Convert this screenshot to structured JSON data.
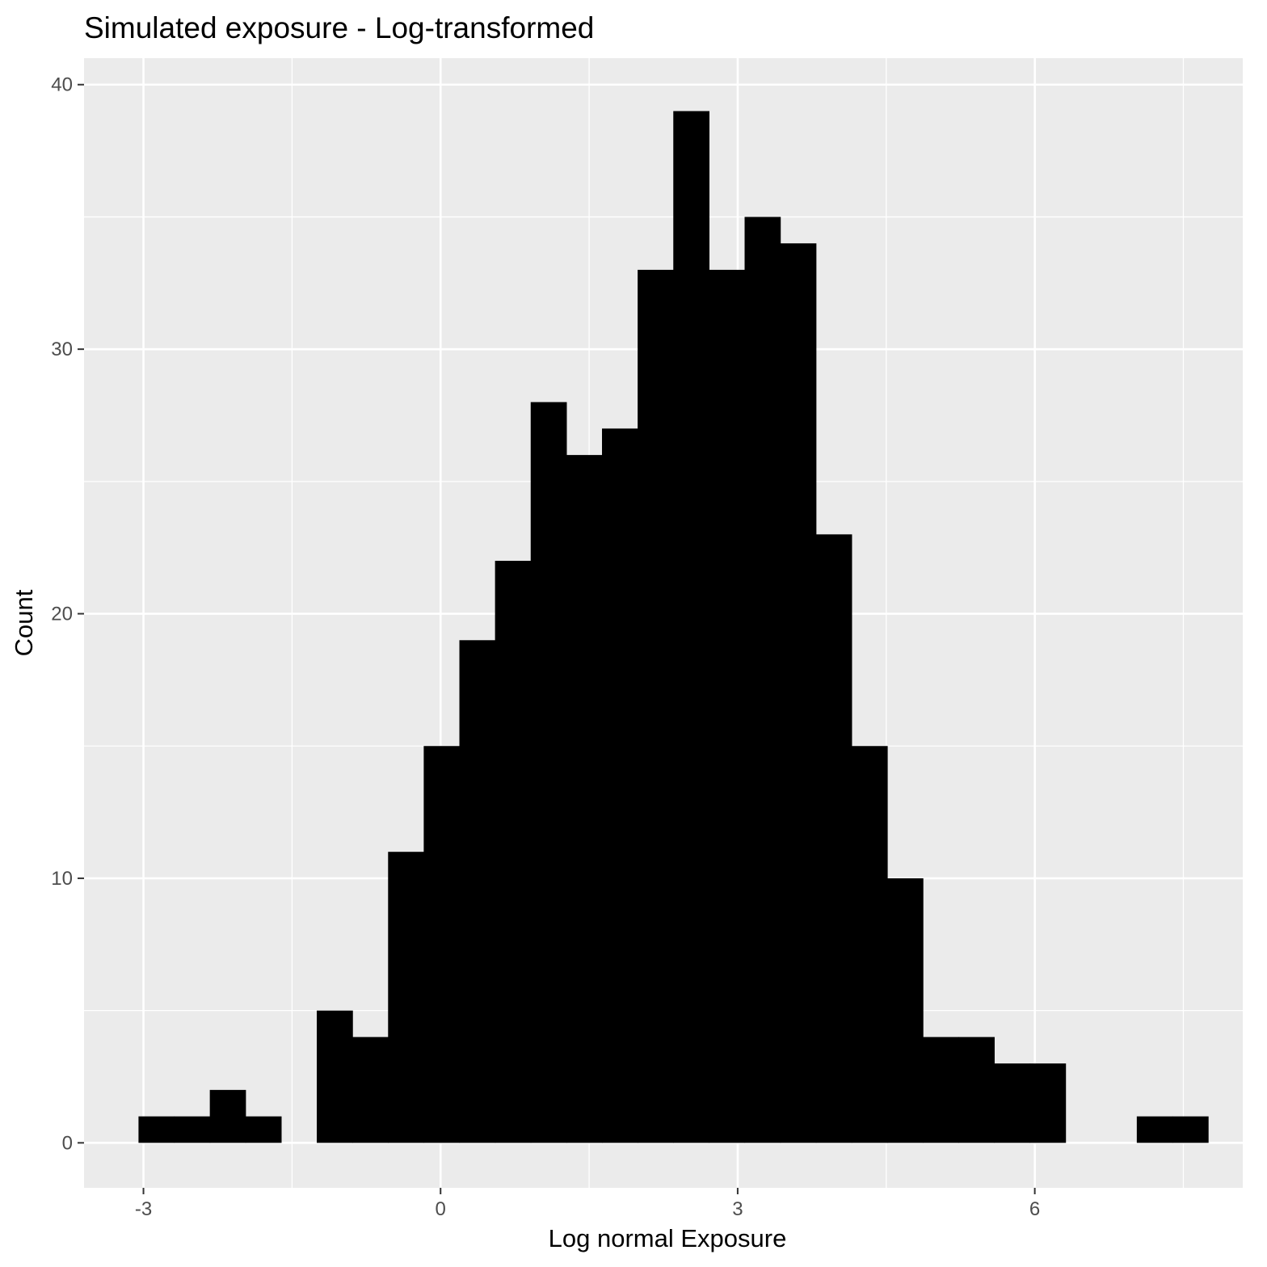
{
  "chart_data": {
    "type": "bar",
    "title": "Simulated exposure - Log-transformed",
    "xlabel": "Log normal Exposure",
    "ylabel": "Count",
    "xlim": [
      -3.6,
      8.1
    ],
    "ylim": [
      -1.7,
      41.0
    ],
    "xticks": [
      -3,
      0,
      3,
      6
    ],
    "xtick_labels": [
      "-3",
      "0",
      "3",
      "6"
    ],
    "yticks": [
      0,
      10,
      20,
      30,
      40
    ],
    "ytick_labels": [
      "0",
      "10",
      "20",
      "30",
      "40"
    ],
    "xminor": [
      -1.5,
      1.5,
      4.5,
      7.5
    ],
    "yminor": [
      5,
      15,
      25,
      35
    ],
    "grid": true,
    "legend": "none",
    "bin_width": 0.36,
    "bin_start": -3.05,
    "counts": [
      1,
      1,
      2,
      1,
      0,
      5,
      4,
      11,
      15,
      19,
      22,
      28,
      26,
      27,
      33,
      39,
      33,
      35,
      34,
      23,
      15,
      10,
      4,
      4,
      3,
      3,
      0,
      0,
      1,
      1
    ],
    "colors": {
      "panel_background": "#ebebeb",
      "bar_fill": "#000000",
      "grid": "#ffffff",
      "tick_text": "#4d4d4d"
    }
  }
}
